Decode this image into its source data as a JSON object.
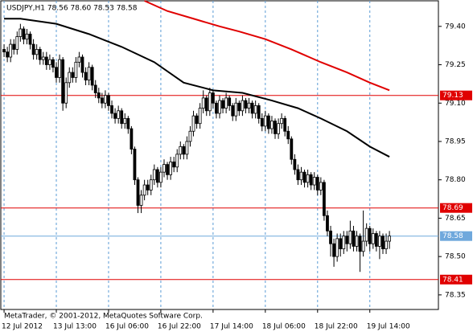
{
  "chart_data": {
    "type": "candlestick",
    "title": "USDJPY,H1  78.56 78.60 78.53 78.58",
    "footer": "MetaTrader, © 2001-2012, MetaQuotes Software Corp.",
    "open": [
      79.31,
      79.3,
      79.28,
      79.33,
      79.31,
      79.36,
      79.39,
      79.35,
      79.37,
      79.33,
      79.29,
      79.31,
      79.27,
      79.28,
      79.25,
      79.27,
      79.24,
      79.2,
      79.27,
      79.1,
      79.18,
      79.22,
      79.2,
      79.26,
      79.28,
      79.22,
      79.19,
      79.24,
      79.17,
      79.14,
      79.12,
      79.1,
      79.13,
      79.09,
      79.06,
      79.04,
      79.07,
      79.02,
      79.04,
      79.0,
      78.92,
      78.8,
      78.7,
      78.74,
      78.78,
      78.76,
      78.8,
      78.84,
      78.79,
      78.83,
      78.86,
      78.82,
      78.87,
      78.85,
      78.9,
      78.93,
      78.9,
      78.95,
      78.99,
      79.05,
      79.02,
      79.08,
      79.12,
      79.07,
      79.14,
      79.1,
      79.06,
      79.11,
      79.08,
      79.12,
      79.09,
      79.05,
      79.1,
      79.07,
      79.11,
      79.08,
      79.1,
      79.06,
      79.09,
      79.04,
      79.01,
      79.05,
      79.0,
      79.03,
      78.98,
      79.02,
      79.04,
      78.99,
      78.96,
      78.88,
      78.84,
      78.8,
      78.83,
      78.79,
      78.82,
      78.78,
      78.81,
      78.76,
      78.79,
      78.66,
      78.6,
      78.55,
      78.5,
      78.57,
      78.53,
      78.58,
      78.55,
      78.6,
      78.54,
      78.58,
      78.52,
      78.56,
      78.61,
      78.55,
      78.59,
      78.54,
      78.58,
      78.53,
      78.56
    ],
    "high": [
      79.33,
      79.32,
      79.35,
      79.35,
      79.38,
      79.41,
      79.4,
      79.39,
      79.38,
      79.35,
      79.33,
      79.32,
      79.3,
      79.3,
      79.29,
      79.28,
      79.26,
      79.29,
      79.28,
      79.2,
      79.24,
      79.24,
      79.28,
      79.3,
      79.29,
      79.24,
      79.26,
      79.25,
      79.19,
      79.16,
      79.14,
      79.15,
      79.14,
      79.11,
      79.08,
      79.09,
      79.08,
      79.06,
      79.05,
      79.01,
      78.93,
      78.81,
      78.76,
      78.8,
      78.8,
      78.82,
      78.86,
      78.85,
      78.85,
      78.88,
      78.87,
      78.89,
      78.89,
      78.92,
      78.95,
      78.94,
      78.97,
      79.01,
      79.07,
      79.06,
      79.1,
      79.15,
      79.13,
      79.16,
      79.15,
      79.11,
      79.13,
      79.12,
      79.14,
      79.13,
      79.1,
      79.12,
      79.11,
      79.13,
      79.12,
      79.12,
      79.11,
      79.11,
      79.1,
      79.06,
      79.07,
      79.06,
      79.05,
      79.04,
      79.04,
      79.06,
      79.05,
      79.01,
      78.97,
      78.9,
      78.86,
      78.85,
      78.84,
      78.84,
      78.83,
      78.83,
      78.82,
      78.81,
      78.8,
      78.68,
      78.62,
      78.57,
      78.59,
      78.59,
      78.6,
      78.6,
      78.64,
      78.62,
      78.6,
      78.59,
      78.68,
      78.63,
      78.62,
      78.61,
      78.6,
      78.6,
      78.59,
      78.59,
      78.6
    ],
    "low": [
      79.28,
      79.26,
      79.26,
      79.29,
      79.29,
      79.34,
      79.33,
      79.33,
      79.31,
      79.27,
      79.27,
      79.25,
      79.25,
      79.23,
      79.23,
      79.22,
      79.18,
      79.18,
      79.07,
      79.08,
      79.16,
      79.18,
      79.18,
      79.24,
      79.2,
      79.17,
      79.17,
      79.15,
      79.12,
      79.1,
      79.08,
      79.08,
      79.07,
      79.04,
      79.02,
      79.02,
      79.0,
      79.0,
      78.98,
      78.9,
      78.78,
      78.67,
      78.67,
      78.72,
      78.74,
      78.74,
      78.78,
      78.77,
      78.77,
      78.81,
      78.8,
      78.8,
      78.83,
      78.83,
      78.88,
      78.88,
      78.88,
      78.93,
      78.97,
      79.0,
      79.0,
      79.06,
      79.05,
      79.05,
      79.08,
      79.04,
      79.04,
      79.06,
      79.06,
      79.07,
      79.03,
      79.03,
      79.05,
      79.05,
      79.06,
      79.06,
      79.04,
      79.04,
      79.02,
      78.99,
      78.99,
      78.98,
      78.98,
      78.96,
      78.96,
      79.0,
      78.97,
      78.94,
      78.86,
      78.82,
      78.78,
      78.78,
      78.77,
      78.77,
      78.76,
      78.76,
      78.74,
      78.74,
      78.64,
      78.58,
      78.5,
      78.46,
      78.48,
      78.5,
      78.51,
      78.52,
      78.53,
      78.52,
      78.52,
      78.44,
      78.5,
      78.54,
      78.52,
      78.53,
      78.52,
      78.49,
      78.51,
      78.51,
      78.53
    ],
    "close": [
      79.3,
      79.28,
      79.33,
      79.31,
      79.36,
      79.39,
      79.35,
      79.37,
      79.33,
      79.29,
      79.31,
      79.27,
      79.28,
      79.25,
      79.27,
      79.24,
      79.2,
      79.27,
      79.1,
      79.18,
      79.22,
      79.2,
      79.26,
      79.28,
      79.22,
      79.19,
      79.24,
      79.17,
      79.14,
      79.12,
      79.1,
      79.13,
      79.09,
      79.06,
      79.04,
      79.07,
      79.02,
      79.04,
      79.0,
      78.92,
      78.8,
      78.7,
      78.74,
      78.78,
      78.76,
      78.8,
      78.84,
      78.79,
      78.83,
      78.86,
      78.82,
      78.87,
      78.85,
      78.9,
      78.93,
      78.9,
      78.95,
      78.99,
      79.05,
      79.02,
      79.08,
      79.12,
      79.07,
      79.14,
      79.1,
      79.06,
      79.11,
      79.08,
      79.12,
      79.09,
      79.05,
      79.1,
      79.07,
      79.11,
      79.08,
      79.1,
      79.06,
      79.09,
      79.04,
      79.01,
      79.05,
      79.0,
      79.03,
      78.98,
      79.02,
      79.04,
      78.99,
      78.96,
      78.88,
      78.84,
      78.8,
      78.83,
      78.79,
      78.82,
      78.78,
      78.81,
      78.76,
      78.79,
      78.66,
      78.6,
      78.55,
      78.5,
      78.57,
      78.53,
      78.58,
      78.55,
      78.6,
      78.54,
      78.58,
      78.52,
      78.56,
      78.61,
      78.55,
      78.59,
      78.54,
      78.58,
      78.53,
      78.56,
      78.58
    ],
    "series": [
      {
        "color": "#e00000",
        "x": [
          43,
          50,
          58,
          66,
          72,
          80,
          88,
          97,
          105,
          112,
          118
        ],
        "values": [
          79.5,
          79.46,
          79.43,
          79.4,
          79.38,
          79.35,
          79.31,
          79.26,
          79.22,
          79.18,
          79.15
        ]
      },
      {
        "color": "#000000",
        "x": [
          0,
          5,
          16,
          26,
          36,
          46,
          55,
          64,
          73,
          82,
          90,
          97,
          105,
          112,
          118
        ],
        "values": [
          79.43,
          79.43,
          79.41,
          79.37,
          79.32,
          79.26,
          79.18,
          79.15,
          79.14,
          79.11,
          79.08,
          79.04,
          78.99,
          78.93,
          78.89
        ]
      }
    ],
    "levels": [
      {
        "value": 79.13,
        "color": "#e00000"
      },
      {
        "value": 78.69,
        "color": "#e00000"
      },
      {
        "value": 78.58,
        "color": "#6fa8dc"
      },
      {
        "value": 78.41,
        "color": "#e00000"
      }
    ],
    "xlim": [
      -1,
      133
    ],
    "xticks": [
      {
        "value": 0,
        "label": "12 Jul 2012"
      },
      {
        "value": 16,
        "label": "13 Jul 13:00"
      },
      {
        "value": 32,
        "label": "16 Jul 06:00"
      },
      {
        "value": 48,
        "label": "16 Jul 22:00"
      },
      {
        "value": 64,
        "label": "17 Jul 14:00"
      },
      {
        "value": 80,
        "label": "18 Jul 06:00"
      },
      {
        "value": 96,
        "label": "18 Jul 22:00"
      },
      {
        "value": 112,
        "label": "19 Jul 14:00"
      }
    ],
    "ylim": [
      78.293,
      79.5
    ],
    "yticks": [
      {
        "value": 79.4,
        "label": "79.40"
      },
      79.25,
      {
        "value": 79.1,
        "label": "79.10"
      },
      78.95,
      {
        "value": 78.8,
        "label": "78.80"
      },
      78.65,
      {
        "value": 78.5,
        "label": "78.50"
      },
      78.35
    ],
    "grid": true
  }
}
